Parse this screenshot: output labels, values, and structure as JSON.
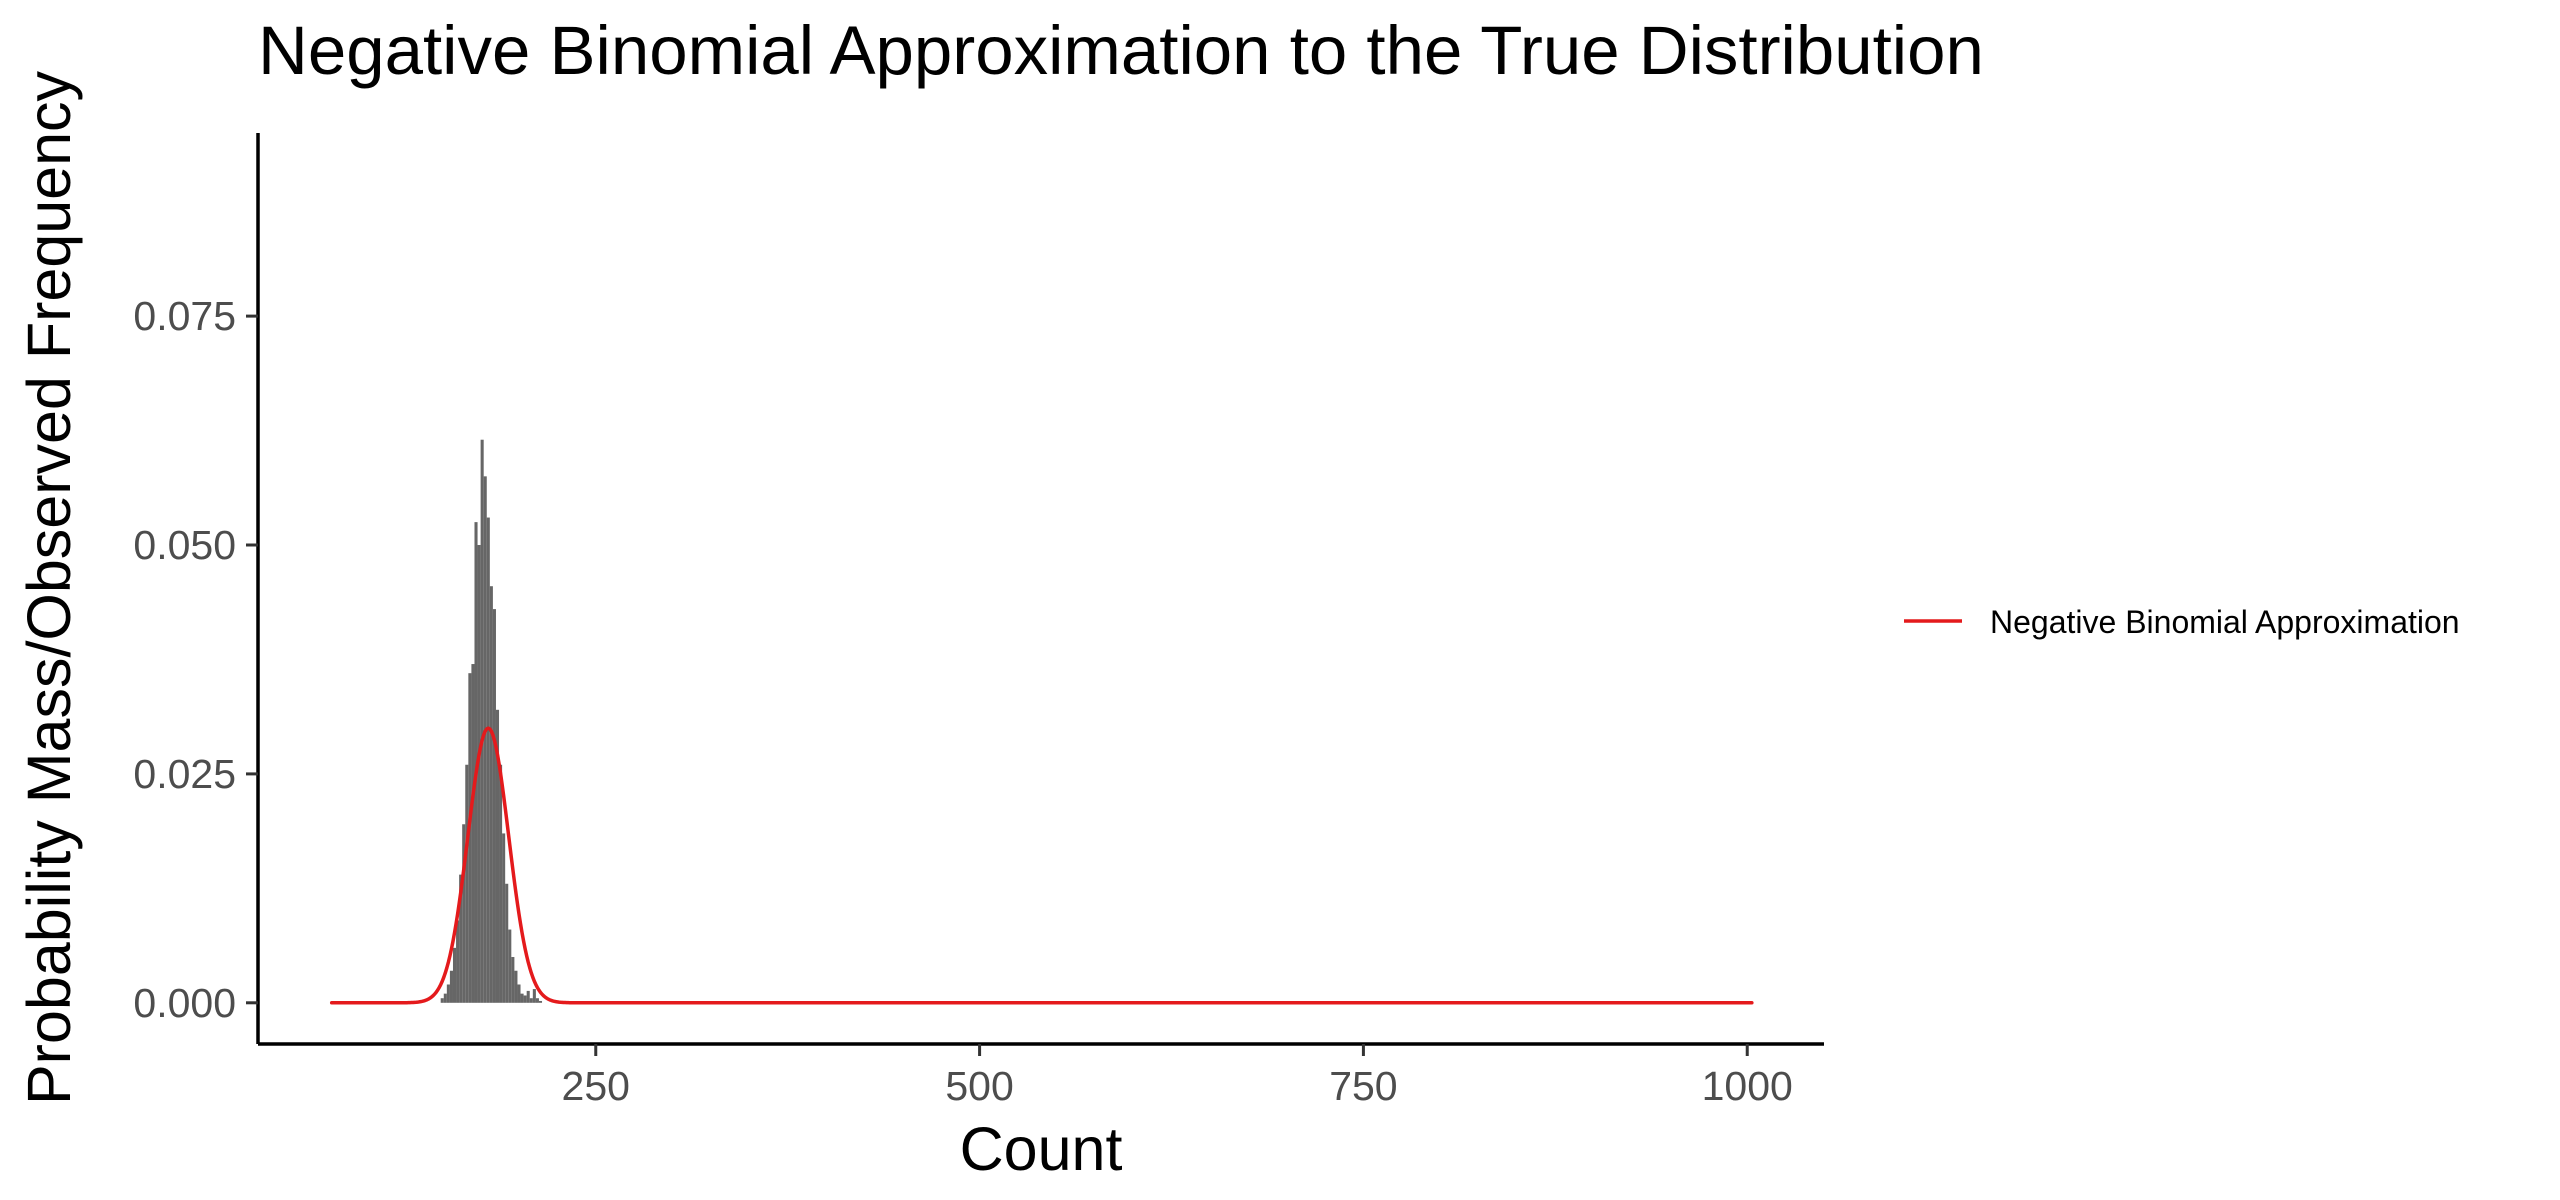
{
  "chart_data": {
    "type": "bar",
    "title": "Negative Binomial Approximation to the True Distribution",
    "xlabel": "Count",
    "ylabel": "Probability Mass/Observed Frequency",
    "xlim": [
      30,
      1050
    ],
    "ylim": [
      -0.0045,
      0.095
    ],
    "x_ticks": [
      250,
      500,
      750,
      1000
    ],
    "x_tick_labels": [
      "250",
      "500",
      "750",
      "1000"
    ],
    "y_ticks": [
      0,
      0.025,
      0.05,
      0.075
    ],
    "y_tick_labels": [
      "0.000",
      "0.025",
      "0.050",
      "0.075"
    ],
    "grid": false,
    "legend_position": "right",
    "bar_color": "#666666",
    "histogram": {
      "name": "Observed Frequency",
      "bin_width": 2,
      "x": [
        150,
        152,
        154,
        156,
        158,
        160,
        162,
        164,
        166,
        168,
        170,
        172,
        174,
        176,
        178,
        180,
        182,
        184,
        186,
        188,
        190,
        192,
        194,
        196,
        198,
        200,
        202,
        204,
        206,
        208,
        210,
        212,
        214
      ],
      "y": [
        0.0005,
        0.001,
        0.002,
        0.0035,
        0.006,
        0.009,
        0.014,
        0.0195,
        0.026,
        0.036,
        0.037,
        0.0525,
        0.05,
        0.0615,
        0.0575,
        0.053,
        0.0455,
        0.043,
        0.032,
        0.026,
        0.0185,
        0.013,
        0.008,
        0.005,
        0.0035,
        0.002,
        0.001,
        0.0008,
        0.0013,
        0.0005,
        0.0015,
        0.0005,
        0.0002
      ]
    },
    "series": [
      {
        "name": "Negative Binomial Approximation",
        "color": "#e41a1c",
        "type": "line",
        "mean": 180,
        "sd": 13.3,
        "peak": 0.03,
        "x_range": [
          78,
          1003
        ]
      }
    ]
  }
}
